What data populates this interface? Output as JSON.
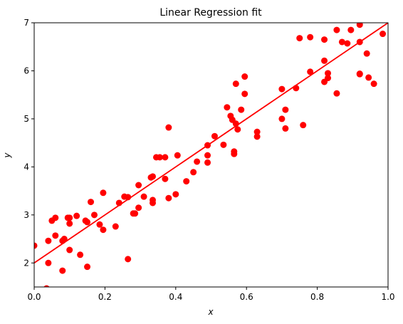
{
  "chart_data": {
    "type": "scatter",
    "title": "Linear Regression fit",
    "x_label": "x",
    "y_label": "y",
    "xlim": [
      0,
      1
    ],
    "ylim": [
      1.5,
      7
    ],
    "xticks": [
      {
        "value": 0,
        "label": "0.0"
      },
      0.2,
      0.4,
      0.6,
      0.8,
      {
        "value": 1,
        "label": "1.0"
      }
    ],
    "yticks": [
      2,
      3,
      4,
      5,
      6,
      7
    ],
    "grid": false,
    "color": "#ff0000",
    "x": [
      0.0,
      0.04,
      0.04,
      0.035,
      0.05,
      0.06,
      0.06,
      0.08,
      0.08,
      0.085,
      0.095,
      0.1,
      0.1,
      0.1,
      0.12,
      0.13,
      0.145,
      0.15,
      0.15,
      0.16,
      0.17,
      0.185,
      0.195,
      0.195,
      0.23,
      0.24,
      0.255,
      0.265,
      0.265,
      0.28,
      0.285,
      0.295,
      0.295,
      0.31,
      0.33,
      0.335,
      0.335,
      0.335,
      0.345,
      0.355,
      0.37,
      0.37,
      0.38,
      0.38,
      0.4,
      0.405,
      0.43,
      0.45,
      0.46,
      0.49,
      0.49,
      0.49,
      0.51,
      0.535,
      0.545,
      0.555,
      0.56,
      0.565,
      0.565,
      0.57,
      0.57,
      0.575,
      0.585,
      0.595,
      0.595,
      0.63,
      0.63,
      0.7,
      0.71,
      0.7,
      0.71,
      0.74,
      0.75,
      0.76,
      0.78,
      0.78,
      0.82,
      0.82,
      0.82,
      0.83,
      0.83,
      0.855,
      0.855,
      0.87,
      0.885,
      0.895,
      0.92,
      0.92,
      0.92,
      0.92,
      0.94,
      0.945,
      0.96,
      0.985
    ],
    "values": [
      2.36,
      2.46,
      2.0,
      1.47,
      2.88,
      2.94,
      2.57,
      1.84,
      2.46,
      2.5,
      2.94,
      2.82,
      2.94,
      2.27,
      2.98,
      2.17,
      2.88,
      2.85,
      1.92,
      3.27,
      3.0,
      2.8,
      2.69,
      3.46,
      2.76,
      3.25,
      3.38,
      3.37,
      2.08,
      3.03,
      3.03,
      3.15,
      3.62,
      3.38,
      3.78,
      3.31,
      3.25,
      3.8,
      4.2,
      4.2,
      4.2,
      3.75,
      4.82,
      3.35,
      3.43,
      4.24,
      3.7,
      3.89,
      4.11,
      4.24,
      4.09,
      4.45,
      4.64,
      4.46,
      5.24,
      5.06,
      4.98,
      4.32,
      4.27,
      4.9,
      5.73,
      4.78,
      5.19,
      5.88,
      5.52,
      4.73,
      4.63,
      5.62,
      5.19,
      5.0,
      4.8,
      5.64,
      6.68,
      4.87,
      5.98,
      6.7,
      6.21,
      6.65,
      5.77,
      5.95,
      5.85,
      6.85,
      5.53,
      6.6,
      6.57,
      6.85,
      6.96,
      5.94,
      5.93,
      6.6,
      6.36,
      5.86,
      5.73,
      6.77
    ],
    "fit": {
      "type": "line",
      "color": "#ff0000",
      "x": [
        0,
        1
      ],
      "values": [
        2,
        7
      ]
    }
  }
}
